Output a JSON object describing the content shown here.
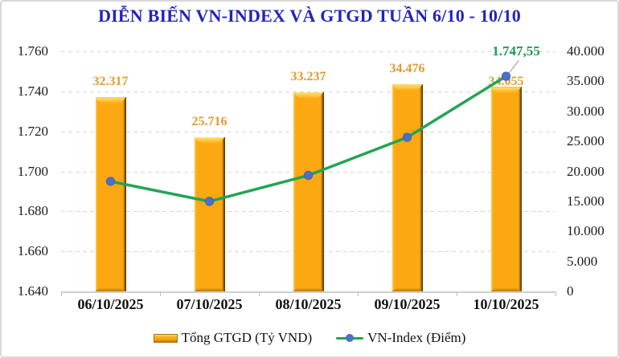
{
  "chart_data": {
    "type": "combo-bar-line",
    "title": "DIỄN BIẾN VN-INDEX VÀ GTGD TUẦN 6/10 - 10/10",
    "categories": [
      "06/10/2025",
      "07/10/2025",
      "08/10/2025",
      "09/10/2025",
      "10/10/2025"
    ],
    "series": [
      {
        "name": "Tổng GTGD (Tỷ VND)",
        "type": "bar",
        "axis": "right",
        "values": [
          32317,
          25716,
          33237,
          34476,
          34055
        ],
        "labels": [
          "32.317",
          "25.716",
          "33.237",
          "34.476",
          "34.055"
        ]
      },
      {
        "name": "VN-Index (Điểm)",
        "type": "line",
        "axis": "left",
        "values": [
          1695,
          1685,
          1698,
          1717,
          1747.55
        ],
        "last_point_label": "1.747,55"
      }
    ],
    "left_axis": {
      "min": 1640,
      "max": 1760,
      "tick_labels": [
        "1.760",
        "1.740",
        "1.720",
        "1.700",
        "1.680",
        "1.660",
        "1.640"
      ]
    },
    "right_axis": {
      "min": 0,
      "max": 40000,
      "tick_labels": [
        "40.000",
        "35.000",
        "30.000",
        "25.000",
        "20.000",
        "15.000",
        "10.000",
        "5.000",
        "0"
      ]
    },
    "legend_position": "bottom",
    "grid": "horizontal-dashed"
  },
  "colors": {
    "title": "#2323BE",
    "bar_fill": "#FCA812",
    "bar_label": "#E09A35",
    "line": "#23A455",
    "marker": "#4A70C8",
    "last_label": "#1E9B52",
    "grid": "#D7D7D7",
    "axis_text": "#1A1A1A",
    "leader": "#999999"
  }
}
